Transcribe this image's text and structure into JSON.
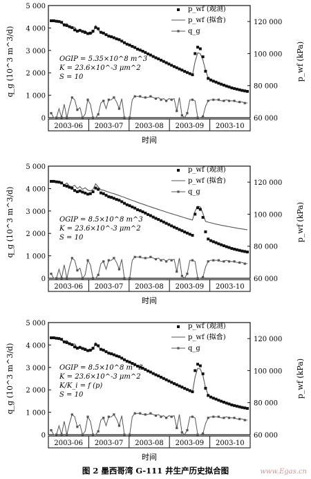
{
  "caption": "图 2 墨西哥湾 G-111 井生产历史拟合图",
  "watermark": "www.Egas.cn",
  "chart_data": [
    {
      "type": "line",
      "xlabel": "时间",
      "ylabel_left": "q_g (10^3 m^3/d)",
      "ylabel_right": "p_wf (kPa)",
      "ylim_left": [
        0,
        5000
      ],
      "ylim_right": [
        60000,
        130000
      ],
      "yticks_left": [
        "0",
        "1 000",
        "2 000",
        "3 000",
        "4 000",
        "5 000"
      ],
      "yticks_right": [
        "60 000",
        "80 000",
        "100 000",
        "120 000"
      ],
      "xticks": [
        "2003-06",
        "2003-07",
        "2003-08",
        "2003-09",
        "2003-10"
      ],
      "legend": [
        "p_wf (观测)",
        "p_wf (拟合)",
        "q_g"
      ],
      "legend_position": "top-right",
      "annotations": [
        "OGIP = 5.35×10^8 m^3",
        "K = 23.6×10^-3 μm^2",
        "S = 10"
      ],
      "x": [
        0,
        2,
        4,
        6,
        8,
        10,
        12,
        14,
        16,
        18,
        20,
        22,
        24,
        26,
        28,
        30,
        32,
        34,
        36,
        38,
        40,
        42,
        44,
        46,
        48,
        50,
        52,
        54,
        56,
        58,
        60,
        62,
        64,
        66,
        68,
        70,
        72,
        74,
        76,
        78,
        80,
        82,
        84,
        86,
        88,
        90,
        92,
        94,
        96,
        98,
        100,
        102,
        104,
        106,
        108,
        110,
        112,
        114,
        116,
        118,
        120,
        122,
        124,
        126,
        128,
        130,
        132,
        134,
        136,
        138,
        140,
        142,
        144,
        146,
        148,
        150
      ],
      "series": [
        {
          "name": "p_wf (观测)",
          "axis": "right",
          "style": "square-markers",
          "values": [
            120500,
            120500,
            120200,
            120000,
            119500,
            118000,
            117500,
            116800,
            116200,
            114800,
            114000,
            114500,
            113800,
            113200,
            112500,
            112800,
            114000,
            116300,
            115500,
            113300,
            112800,
            111800,
            110900,
            110500,
            109900,
            109200,
            108700,
            107800,
            106800,
            105900,
            105300,
            104500,
            103800,
            102800,
            102200,
            101500,
            100700,
            99800,
            99100,
            98200,
            97400,
            96700,
            95900,
            95100,
            94300,
            93500,
            92700,
            91900,
            91200,
            90400,
            89700,
            88900,
            88200,
            87500,
            86800,
            100000,
            104000,
            103000,
            98000,
            89000,
            84500,
            83500,
            82800,
            82200,
            81500,
            80900,
            80300,
            79700,
            79200,
            78600,
            78200,
            77800,
            77400,
            77000,
            76700,
            76400
          ]
        },
        {
          "name": "p_wf (拟合)",
          "axis": "right",
          "style": "line",
          "values": [
            120600,
            120600,
            120300,
            120100,
            119500,
            117000,
            118800,
            116200,
            115800,
            116500,
            114000,
            115200,
            113400,
            114300,
            112400,
            111900,
            113200,
            117500,
            115000,
            112700,
            112400,
            111500,
            111000,
            110200,
            109700,
            108900,
            108300,
            107400,
            106600,
            105700,
            105000,
            104200,
            103500,
            102700,
            101900,
            101200,
            100400,
            99600,
            98900,
            98100,
            97300,
            96500,
            95800,
            95000,
            94200,
            93400,
            92700,
            91900,
            91100,
            90400,
            89600,
            88900,
            88100,
            87400,
            86700,
            95000,
            100500,
            100000,
            96000,
            89500,
            85000,
            84000,
            83000,
            82300,
            81700,
            81000,
            80400,
            79800,
            79300,
            78700,
            78300,
            77800,
            77400,
            77100,
            76800,
            76500
          ]
        },
        {
          "name": "q_g",
          "axis": "left",
          "style": "line-square-markers",
          "values": [
            200,
            0,
            0,
            400,
            0,
            600,
            0,
            500,
            900,
            800,
            350,
            450,
            0,
            150,
            800,
            600,
            0,
            0,
            150,
            650,
            750,
            400,
            800,
            800,
            900,
            700,
            400,
            850,
            0,
            0,
            0,
            800,
            950,
            950,
            950,
            900,
            900,
            900,
            950,
            900,
            850,
            900,
            800,
            850,
            750,
            850,
            800,
            850,
            300,
            900,
            100,
            0,
            200,
            800,
            800,
            750,
            0,
            0,
            50,
            500,
            750,
            800,
            800,
            800,
            800,
            750,
            750,
            800,
            750,
            750,
            750,
            700,
            700,
            700,
            650,
            650
          ]
        }
      ]
    },
    {
      "type": "line",
      "xlabel": "时间",
      "ylabel_left": "q_g (10^3 m^3/d)",
      "ylabel_right": "p_wf (kPa)",
      "ylim_left": [
        0,
        5000
      ],
      "ylim_right": [
        60000,
        130000
      ],
      "yticks_left": [
        "0",
        "1 000",
        "2 000",
        "3 000",
        "4 000",
        "5 000"
      ],
      "yticks_right": [
        "60 000",
        "80 000",
        "100 000",
        "120 000"
      ],
      "xticks": [
        "2003-06",
        "2003-07",
        "2003-08",
        "2003-09",
        "2003-10"
      ],
      "legend": [
        "p_wf (观测)",
        "p_wf (拟合)",
        "q_g"
      ],
      "legend_position": "top-right",
      "annotations": [
        "OGIP = 8.5×10^8 m^3",
        "K = 23.6×10^-3 μm^2",
        "S = 10"
      ],
      "x": [
        0,
        2,
        4,
        6,
        8,
        10,
        12,
        14,
        16,
        18,
        20,
        22,
        24,
        26,
        28,
        30,
        32,
        34,
        36,
        38,
        40,
        42,
        44,
        46,
        48,
        50,
        52,
        54,
        56,
        58,
        60,
        62,
        64,
        66,
        68,
        70,
        72,
        74,
        76,
        78,
        80,
        82,
        84,
        86,
        88,
        90,
        92,
        94,
        96,
        98,
        100,
        102,
        104,
        106,
        108,
        110,
        112,
        114,
        116,
        118,
        120,
        122,
        124,
        126,
        128,
        130,
        132,
        134,
        136,
        138,
        140,
        142,
        144,
        146,
        148,
        150
      ],
      "series": [
        {
          "name": "p_wf (观测)",
          "axis": "right",
          "style": "square-markers",
          "values": [
            120500,
            120500,
            120200,
            120000,
            119500,
            118000,
            117500,
            116800,
            116200,
            114800,
            114000,
            114500,
            113800,
            113200,
            112500,
            112800,
            114000,
            116300,
            115500,
            113300,
            112800,
            111800,
            110900,
            110500,
            109900,
            109200,
            108700,
            107800,
            106800,
            105900,
            105300,
            104500,
            103800,
            102800,
            102200,
            101500,
            100700,
            99800,
            99100,
            98200,
            97400,
            96700,
            95900,
            95100,
            94300,
            93500,
            92700,
            91900,
            91200,
            90400,
            89700,
            88900,
            88200,
            87500,
            86800,
            100000,
            104000,
            103000,
            98000,
            89000,
            84500,
            83500,
            82800,
            82200,
            81500,
            80900,
            80300,
            79700,
            79200,
            78600,
            78200,
            77800,
            77400,
            77000,
            76700,
            76400
          ]
        },
        {
          "name": "p_wf (拟合)",
          "axis": "right",
          "style": "line",
          "values": [
            120600,
            120600,
            120400,
            120200,
            120000,
            118000,
            119500,
            117500,
            117200,
            118000,
            116000,
            117200,
            115500,
            116500,
            115000,
            114500,
            115500,
            119000,
            117000,
            115200,
            115000,
            114300,
            113800,
            113200,
            112800,
            112200,
            111700,
            111000,
            110500,
            109800,
            109200,
            108600,
            108000,
            107400,
            106800,
            106300,
            105700,
            105100,
            104600,
            104000,
            103500,
            102900,
            102400,
            101900,
            101300,
            100800,
            100300,
            99800,
            99300,
            98800,
            98300,
            97800,
            97300,
            96800,
            96400,
            102000,
            105000,
            104500,
            100500,
            95500,
            95000,
            94600,
            94200,
            93800,
            93500,
            93100,
            92800,
            92500,
            92200,
            91900,
            91600,
            91300,
            91000,
            90800,
            90500,
            90300
          ]
        },
        {
          "name": "q_g",
          "axis": "left",
          "style": "line-square-markers",
          "values": [
            200,
            0,
            0,
            400,
            0,
            600,
            0,
            500,
            900,
            800,
            350,
            450,
            0,
            150,
            800,
            600,
            0,
            0,
            150,
            650,
            750,
            400,
            800,
            800,
            900,
            700,
            400,
            850,
            0,
            0,
            0,
            800,
            950,
            950,
            950,
            900,
            900,
            900,
            950,
            900,
            850,
            900,
            800,
            850,
            750,
            850,
            800,
            850,
            300,
            900,
            100,
            0,
            200,
            800,
            800,
            750,
            0,
            0,
            50,
            500,
            750,
            800,
            800,
            800,
            800,
            750,
            750,
            800,
            750,
            750,
            750,
            700,
            700,
            700,
            650,
            650
          ]
        }
      ]
    },
    {
      "type": "line",
      "xlabel": "时间",
      "ylabel_left": "q_g (10^3 m^3/d)",
      "ylabel_right": "p_wf (kPa)",
      "ylim_left": [
        0,
        5000
      ],
      "ylim_right": [
        60000,
        130000
      ],
      "yticks_left": [
        "0",
        "1 000",
        "2 000",
        "3 000",
        "4 000",
        "5 000"
      ],
      "yticks_right": [
        "60 000",
        "80 000",
        "100 000",
        "120 000"
      ],
      "xticks": [
        "2003-06",
        "2003-07",
        "2003-08",
        "2003-09",
        "2003-10"
      ],
      "legend": [
        "p_wf (观测)",
        "p_wf (拟合)",
        "q_g"
      ],
      "legend_position": "top-right",
      "annotations": [
        "OGIP = 8.5×10^8 m^3",
        "K = 23.6×10^-3 μm^2",
        "K/K_i = f (p)",
        "S = 10"
      ],
      "x": [
        0,
        2,
        4,
        6,
        8,
        10,
        12,
        14,
        16,
        18,
        20,
        22,
        24,
        26,
        28,
        30,
        32,
        34,
        36,
        38,
        40,
        42,
        44,
        46,
        48,
        50,
        52,
        54,
        56,
        58,
        60,
        62,
        64,
        66,
        68,
        70,
        72,
        74,
        76,
        78,
        80,
        82,
        84,
        86,
        88,
        90,
        92,
        94,
        96,
        98,
        100,
        102,
        104,
        106,
        108,
        110,
        112,
        114,
        116,
        118,
        120,
        122,
        124,
        126,
        128,
        130,
        132,
        134,
        136,
        138,
        140,
        142,
        144,
        146,
        148,
        150
      ],
      "series": [
        {
          "name": "p_wf (观测)",
          "axis": "right",
          "style": "square-markers",
          "values": [
            120500,
            120500,
            120200,
            120000,
            119500,
            118000,
            117500,
            116800,
            116200,
            114800,
            114000,
            114500,
            113800,
            113200,
            112500,
            112800,
            114000,
            116300,
            115500,
            113300,
            112800,
            111800,
            110900,
            110500,
            109900,
            109200,
            108700,
            107800,
            106800,
            105900,
            105300,
            104500,
            103800,
            102800,
            102200,
            101500,
            100700,
            99800,
            99100,
            98200,
            97400,
            96700,
            95900,
            95100,
            94300,
            93500,
            92700,
            91900,
            91200,
            90400,
            89700,
            88900,
            88200,
            87500,
            86800,
            100000,
            104000,
            103000,
            98000,
            89000,
            84500,
            83500,
            82800,
            82200,
            81500,
            80900,
            80300,
            79700,
            79200,
            78600,
            78200,
            77800,
            77400,
            77000,
            76700,
            76400
          ]
        },
        {
          "name": "p_wf (拟合)",
          "axis": "right",
          "style": "line",
          "values": [
            120600,
            120600,
            120300,
            120100,
            119500,
            117200,
            118800,
            116300,
            115800,
            116700,
            114100,
            115300,
            113500,
            114200,
            112500,
            112000,
            113300,
            117400,
            115100,
            112700,
            112400,
            111600,
            111000,
            110300,
            109700,
            108900,
            108300,
            107500,
            106600,
            105800,
            105000,
            104200,
            103500,
            102700,
            102000,
            101200,
            100400,
            99700,
            98900,
            98100,
            97400,
            96600,
            95800,
            95000,
            94300,
            93500,
            92700,
            91900,
            91200,
            90400,
            89600,
            88900,
            88100,
            87400,
            86700,
            96000,
            101500,
            101000,
            97000,
            89300,
            84900,
            83800,
            83000,
            82300,
            81700,
            81000,
            80400,
            79900,
            79300,
            78800,
            78300,
            77900,
            77500,
            77100,
            76800,
            76500
          ]
        },
        {
          "name": "q_g",
          "axis": "left",
          "style": "line-square-markers",
          "values": [
            200,
            0,
            0,
            400,
            0,
            600,
            0,
            500,
            900,
            800,
            350,
            450,
            0,
            150,
            800,
            600,
            0,
            0,
            150,
            650,
            750,
            400,
            800,
            800,
            900,
            700,
            400,
            850,
            0,
            0,
            0,
            800,
            950,
            950,
            950,
            900,
            900,
            900,
            950,
            900,
            850,
            900,
            800,
            850,
            750,
            850,
            800,
            850,
            300,
            900,
            100,
            0,
            200,
            800,
            800,
            750,
            0,
            0,
            50,
            500,
            750,
            800,
            800,
            800,
            800,
            750,
            750,
            800,
            750,
            750,
            750,
            700,
            700,
            700,
            650,
            650
          ]
        }
      ]
    }
  ]
}
